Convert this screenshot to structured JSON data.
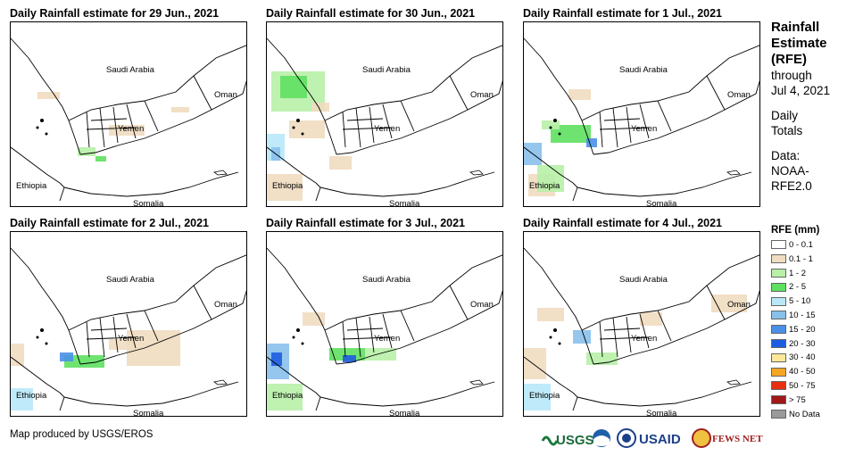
{
  "panels": [
    {
      "title": "Daily Rainfall estimate for 29 Jun., 2021"
    },
    {
      "title": "Daily Rainfall estimate for 30 Jun., 2021"
    },
    {
      "title": "Daily Rainfall estimate for 1 Jul., 2021"
    },
    {
      "title": "Daily Rainfall estimate for 2 Jul., 2021"
    },
    {
      "title": "Daily Rainfall estimate for 3 Jul., 2021"
    },
    {
      "title": "Daily Rainfall estimate for 4 Jul., 2021"
    }
  ],
  "map_labels": {
    "saudi": "Saudi Arabia",
    "oman": "Oman",
    "yemen": "Yemen",
    "ethiopia": "Ethiopia",
    "somalia": "Somalia"
  },
  "legend": {
    "title_line1": "Rainfall",
    "title_line2": "Estimate",
    "title_line3": "(RFE)",
    "through": "through",
    "date": "Jul 4, 2021",
    "daily1": "Daily",
    "daily2": "Totals",
    "data1": "Data:",
    "data2": "NOAA-",
    "data3": "RFE2.0",
    "unit": "RFE (mm)",
    "classes": [
      {
        "label": "0 - 0.1",
        "color": "#ffffff"
      },
      {
        "label": "0.1 - 1",
        "color": "#f0dcc0"
      },
      {
        "label": "1 - 2",
        "color": "#b8f0a8"
      },
      {
        "label": "2 - 5",
        "color": "#5ee060"
      },
      {
        "label": "5 - 10",
        "color": "#b8e8f8"
      },
      {
        "label": "10 - 15",
        "color": "#88c0ec"
      },
      {
        "label": "15 - 20",
        "color": "#4a90e8"
      },
      {
        "label": "20 - 30",
        "color": "#1e5ce0"
      },
      {
        "label": "30 - 40",
        "color": "#fde89a"
      },
      {
        "label": "40 - 50",
        "color": "#f5a623"
      },
      {
        "label": "50 - 75",
        "color": "#e83010"
      },
      {
        "label": "> 75",
        "color": "#a01818"
      },
      {
        "label": "No Data",
        "color": "#9a9a9a"
      }
    ]
  },
  "footer": {
    "credit": "Map produced by USGS/EROS"
  },
  "logos": {
    "usgs": "USGS",
    "usaid": "USAID",
    "fews": "FEWS NET"
  }
}
